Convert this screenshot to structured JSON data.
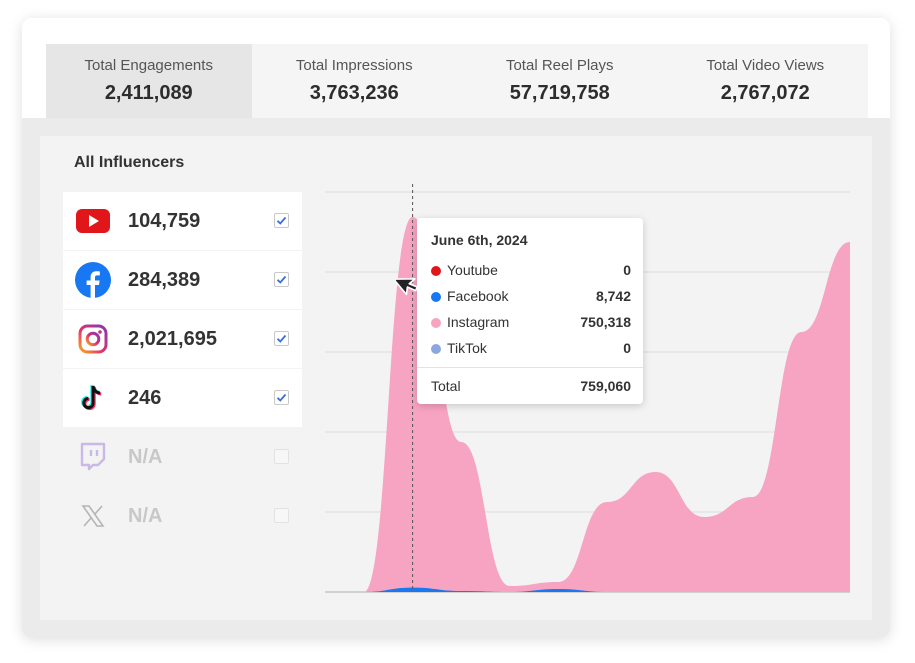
{
  "tabs": [
    {
      "label": "Total Engagements",
      "value": "2,411,089",
      "active": true
    },
    {
      "label": "Total Impressions",
      "value": "3,763,236",
      "active": false
    },
    {
      "label": "Total Reel Plays",
      "value": "57,719,758",
      "active": false
    },
    {
      "label": "Total Video Views",
      "value": "2,767,072",
      "active": false
    }
  ],
  "panel": {
    "title": "All Influencers",
    "platforms": [
      {
        "name": "YouTube",
        "icon": "youtube-icon",
        "count": "104,759",
        "checked": true,
        "enabled": true
      },
      {
        "name": "Facebook",
        "icon": "facebook-icon",
        "count": "284,389",
        "checked": true,
        "enabled": true
      },
      {
        "name": "Instagram",
        "icon": "instagram-icon",
        "count": "2,021,695",
        "checked": true,
        "enabled": true
      },
      {
        "name": "TikTok",
        "icon": "tiktok-icon",
        "count": "246",
        "checked": true,
        "enabled": true
      },
      {
        "name": "Twitch",
        "icon": "twitch-icon",
        "count": "N/A",
        "checked": false,
        "enabled": false
      },
      {
        "name": "X",
        "icon": "x-icon",
        "count": "N/A",
        "checked": false,
        "enabled": false
      }
    ]
  },
  "tooltip": {
    "date": "June 6th, 2024",
    "rows": [
      {
        "name": "Youtube",
        "value": "0",
        "color": "#e0161b"
      },
      {
        "name": "Facebook",
        "value": "8,742",
        "color": "#1877f2"
      },
      {
        "name": "Instagram",
        "value": "750,318",
        "color": "#f7a3c2"
      },
      {
        "name": "TikTok",
        "value": "0",
        "color": "#8ea6e0"
      }
    ],
    "total_label": "Total",
    "total_value": "759,060"
  },
  "chart_data": {
    "type": "area",
    "stacked": true,
    "grid": true,
    "series": [
      {
        "name": "Instagram",
        "color": "#f7a3c2",
        "values": [
          0,
          750318,
          300000,
          12000,
          20000,
          180000,
          240000,
          150000,
          190000,
          520000,
          700000
        ]
      },
      {
        "name": "Facebook",
        "color": "#1877f2",
        "values": [
          0,
          8742,
          2000,
          0,
          6000,
          0,
          0,
          0,
          0,
          0,
          0
        ]
      }
    ],
    "colors": {
      "accent": "#3a6fd8",
      "grid": "#dcdcdc",
      "hover_line": "#555555"
    }
  }
}
